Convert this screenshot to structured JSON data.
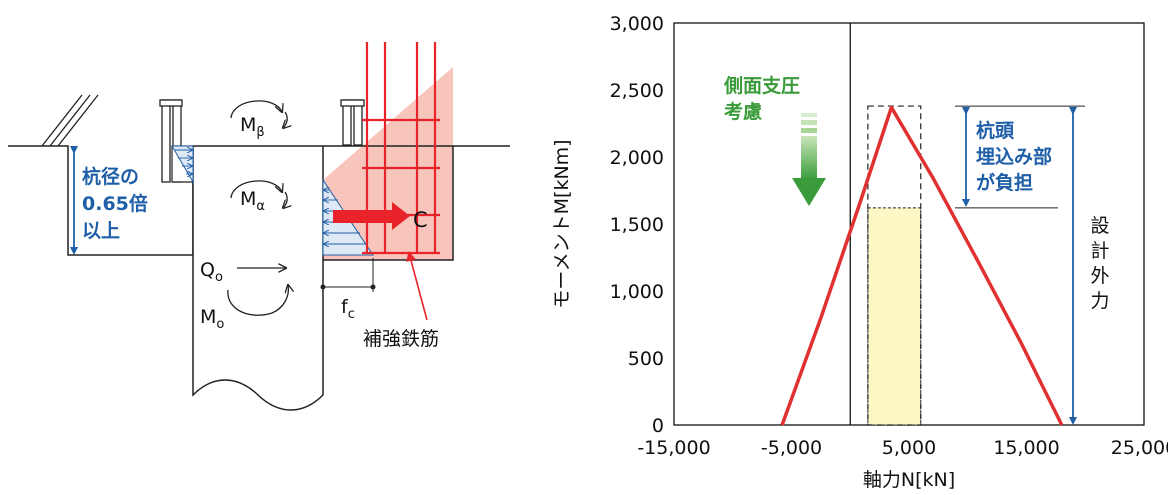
{
  "diagram": {
    "moment_beta": "M",
    "moment_beta_sub": "β",
    "moment_alpha": "M",
    "moment_alpha_sub": "α",
    "shear": "Q",
    "shear_sub": "o",
    "moment_o": "M",
    "moment_o_sub": "o",
    "force_c": "C",
    "fc_main": "f",
    "fc_sub": "c",
    "rebar_label": "補強鉄筋",
    "depth_label": [
      "杭径の",
      "0.65倍",
      "以上"
    ],
    "colors": {
      "rebar": "#e8242a",
      "blue": "#1f5fa8",
      "zone": "#f7c5bc"
    }
  },
  "chart_data": {
    "type": "line",
    "xlabel": "軸力N[kN]",
    "ylabel": "モーメントM[kNm]",
    "xlim": [
      -15000,
      25000
    ],
    "ylim": [
      0,
      3000
    ],
    "x_ticks": [
      "-15,000",
      "-5,000",
      "5,000",
      "15,000",
      "25,000"
    ],
    "y_ticks": [
      "0",
      "500",
      "1,000",
      "1,500",
      "2,000",
      "2,500",
      "3,000"
    ],
    "series": [
      {
        "x": [
          -5800,
          -2500,
          800,
          3500,
          7000,
          11000,
          14500,
          18000
        ],
        "y": [
          0,
          800,
          1650,
          2370,
          1850,
          1200,
          620,
          0
        ]
      }
    ],
    "design_force_box": {
      "x": [
        1500,
        6000
      ],
      "y": [
        0,
        1620
      ]
    },
    "dashed_box": {
      "x": [
        1500,
        6000
      ],
      "y": [
        0,
        2380
      ]
    },
    "annotations": {
      "side_pressure": [
        "側面支圧",
        "考慮"
      ],
      "pile_head": [
        "杭頭",
        "埋込み部",
        "が負担"
      ],
      "design_force": [
        "設",
        "計",
        "外",
        "力"
      ]
    },
    "colors": {
      "curve": "#e03030",
      "box_fill": "#fdf7c6",
      "blue": "#1f5fa8",
      "green": "#3a9b3a"
    }
  }
}
